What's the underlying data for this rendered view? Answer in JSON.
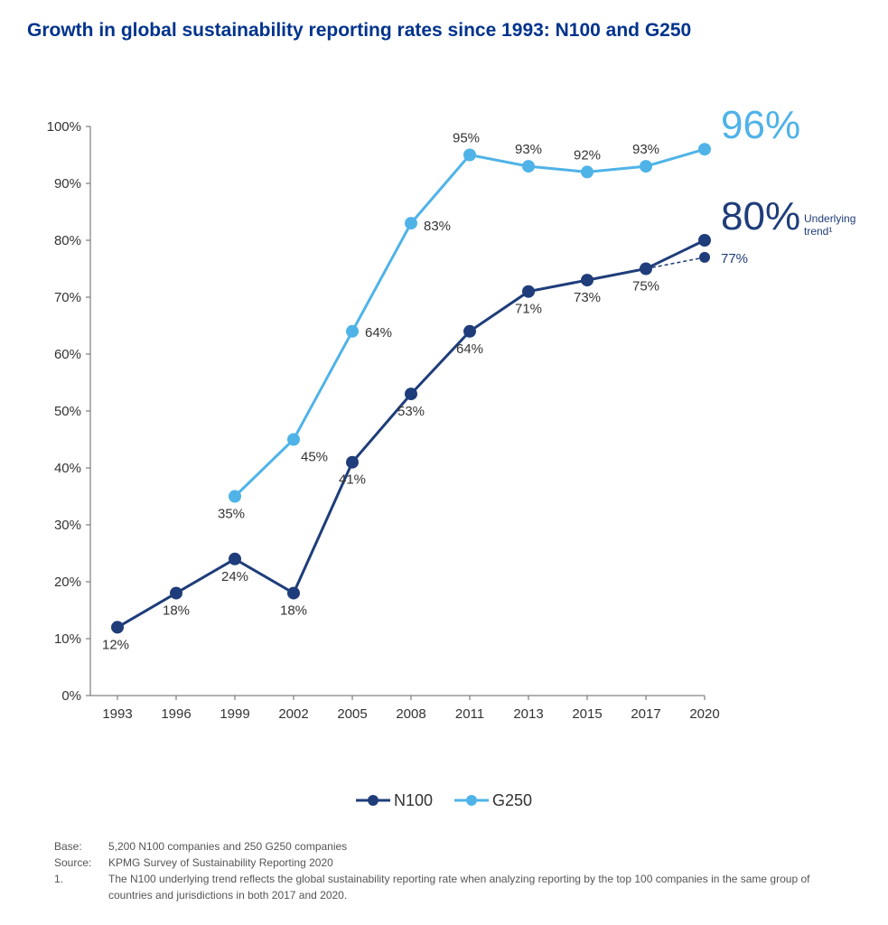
{
  "title": "Growth in global sustainability reporting rates since 1993: N100 and G250",
  "chart": {
    "type": "line",
    "background_color": "#ffffff",
    "axis_color": "#666666",
    "axis_width": 1,
    "label_color": "#333333",
    "label_fontsize": 15,
    "data_label_fontsize": 15,
    "ylim": [
      0,
      100
    ],
    "ytick_step": 10,
    "ytick_suffix": "%",
    "categories": [
      "1993",
      "1996",
      "1999",
      "2002",
      "2005",
      "2008",
      "2011",
      "2013",
      "2015",
      "2017",
      "2020"
    ],
    "series": [
      {
        "name": "N100",
        "color": "#1f3d7a",
        "line_width": 3,
        "marker_radius": 7,
        "values": [
          12,
          18,
          24,
          18,
          41,
          53,
          64,
          71,
          73,
          75,
          80
        ],
        "labels": [
          "12%",
          "18%",
          "24%",
          "18%",
          "41%",
          "53%",
          "64%",
          "71%",
          "73%",
          "75%",
          ""
        ],
        "callout": "80%",
        "callout_color": "#1f3d7a",
        "callout_fontsize": 44
      },
      {
        "name": "G250",
        "color": "#4fb3e8",
        "line_width": 3,
        "marker_radius": 7,
        "values": [
          null,
          null,
          35,
          45,
          64,
          83,
          95,
          93,
          92,
          93,
          96
        ],
        "labels": [
          "",
          "",
          "35%",
          "45%",
          "64%",
          "83%",
          "95%",
          "93%",
          "92%",
          "93%",
          ""
        ],
        "callout": "96%",
        "callout_color": "#4fb3e8",
        "callout_fontsize": 44
      }
    ],
    "underlying_trend": {
      "from_index": 9,
      "from_value": 75,
      "to_value": 77,
      "label": "77%",
      "note": "Underlying trend¹",
      "color": "#1f3d7a",
      "dash": "4 3",
      "marker_radius": 6
    },
    "legend": {
      "items": [
        {
          "label": "N100",
          "color": "#1f3d7a"
        },
        {
          "label": "G250",
          "color": "#4fb3e8"
        }
      ]
    }
  },
  "footnotes": {
    "base_label": "Base:",
    "base_text": "5,200 N100 companies and 250 G250 companies",
    "source_label": "Source:",
    "source_text": "KPMG Survey of Sustainability Reporting 2020",
    "note_label": "1.",
    "note_text": "The N100 underlying trend reflects the global sustainability reporting rate when analyzing reporting by the top 100 companies in the same group of countries and jurisdictions in both 2017 and 2020."
  }
}
